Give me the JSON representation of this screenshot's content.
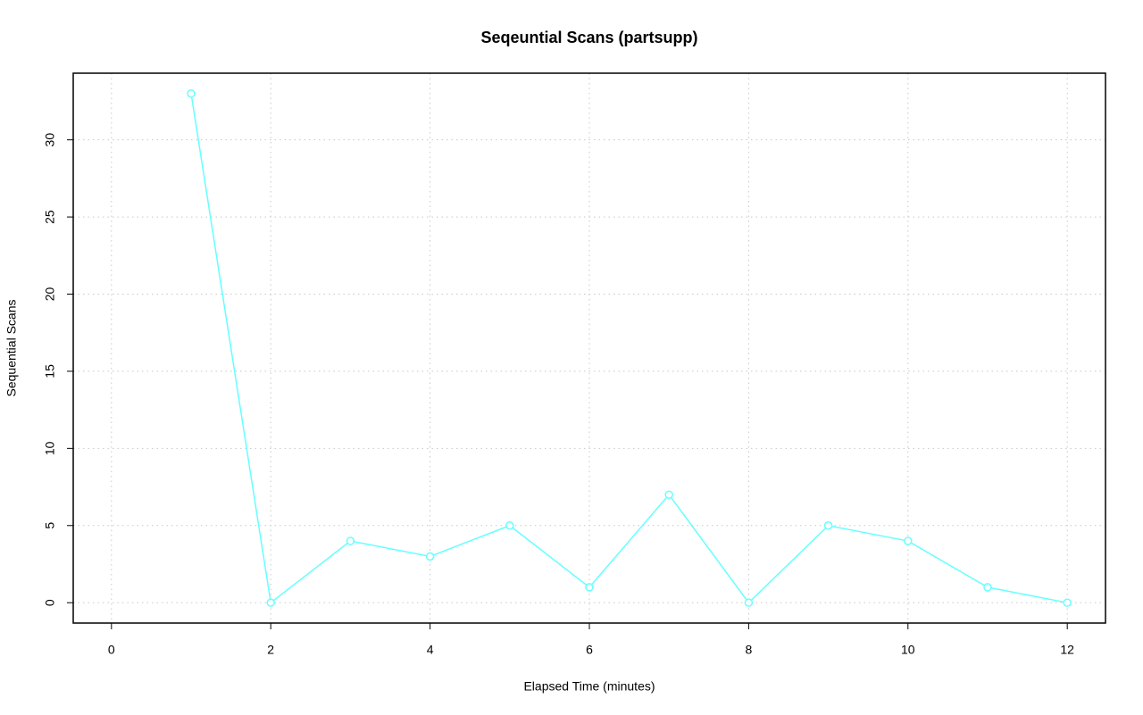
{
  "chart_data": {
    "type": "line",
    "title": "Seqeuntial Scans (partsupp)",
    "x_label": "Elapsed Time (minutes)",
    "y_label": "Sequential Scans",
    "x": [
      1,
      2,
      3,
      4,
      5,
      6,
      7,
      8,
      9,
      10,
      11,
      12
    ],
    "series": [
      {
        "color": "#66ffff",
        "values": [
          33,
          0,
          4,
          3,
          5,
          1,
          7,
          0,
          5,
          4,
          1,
          0
        ]
      }
    ],
    "xlim": [
      -0.48,
      12.48
    ],
    "xticks": [
      0,
      2,
      4,
      6,
      8,
      10,
      12
    ],
    "ylim": [
      -1.32,
      34.32
    ],
    "yticks": [
      0,
      5,
      10,
      15,
      20,
      25,
      30
    ],
    "grid": true
  }
}
